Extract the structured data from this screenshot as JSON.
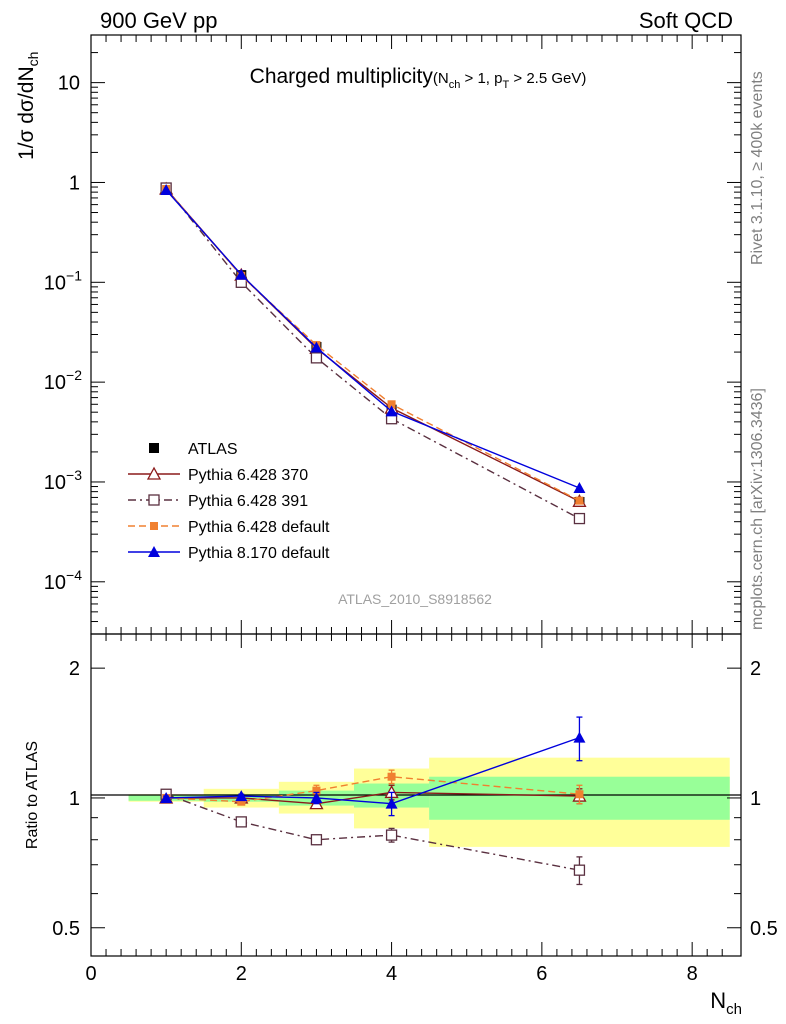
{
  "header": {
    "left": "900 GeV pp",
    "right": "Soft QCD"
  },
  "side_labels": {
    "rivet": "Rivet 3.1.10, ≥ 400k events",
    "mcplots": "mcplots.cern.ch [arXiv:1306.3436]"
  },
  "chart_data": [
    {
      "type": "line",
      "title": "Charged multiplicity",
      "title_suffix": {
        "open": "(N",
        "sub1": "ch",
        "mid": " > 1, p",
        "sub2": "T",
        "close": " > 2.5 GeV)"
      },
      "ylabel": {
        "main": "1/σ dσ/dN",
        "sub": "ch"
      },
      "yscale": "log",
      "ylim": [
        3e-05,
        30
      ],
      "xlim": [
        0,
        8.65
      ],
      "yticks": [
        {
          "value": 10,
          "label": "10"
        },
        {
          "value": 1,
          "label": "1"
        },
        {
          "value": 0.1,
          "base": "10",
          "exp": "−1"
        },
        {
          "value": 0.01,
          "base": "10",
          "exp": "−2"
        },
        {
          "value": 0.001,
          "base": "10",
          "exp": "−3"
        },
        {
          "value": 0.0001,
          "base": "10",
          "exp": "−4"
        }
      ],
      "watermark": "ATLAS_2010_S8918562",
      "legend_position": "bottom-left",
      "x": [
        1,
        2,
        3,
        4,
        6.5
      ],
      "series": [
        {
          "name": "ATLAS",
          "values": [
            0.86,
            0.118,
            0.0225,
            0.0053,
            0.00063
          ],
          "color": "#000000",
          "marker": "square-filled",
          "dash": "none"
        },
        {
          "name": "Pythia 6.428 370",
          "values": [
            0.86,
            0.118,
            0.0218,
            0.0055,
            0.00064
          ],
          "color": "#8b1a1a",
          "marker": "triangle-open",
          "dash": "solid"
        },
        {
          "name": "Pythia 6.428 391",
          "values": [
            0.88,
            0.1,
            0.0175,
            0.0043,
            0.00043
          ],
          "color": "#5a3040",
          "marker": "square-open",
          "dash": "dashdot"
        },
        {
          "name": "Pythia 6.428 default",
          "values": [
            0.86,
            0.116,
            0.0235,
            0.006,
            0.00065
          ],
          "color": "#f08030",
          "marker": "square-filled-small",
          "dash": "dashed"
        },
        {
          "name": "Pythia 8.170 default",
          "values": [
            0.84,
            0.119,
            0.0222,
            0.0051,
            0.00087
          ],
          "color": "#0000dd",
          "marker": "triangle-filled",
          "dash": "solid"
        }
      ]
    },
    {
      "type": "line",
      "ylabel": "Ratio to ATLAS",
      "xlabel": {
        "main": "N",
        "sub": "ch"
      },
      "yscale": "log",
      "ylim": [
        0.43,
        2.4
      ],
      "xlim": [
        0,
        8.65
      ],
      "yticks": [
        {
          "value": 2,
          "label": "2"
        },
        {
          "value": 1,
          "label": "1"
        },
        {
          "value": 0.5,
          "label": "0.5"
        }
      ],
      "xticks": [
        {
          "value": 0,
          "label": "0"
        },
        {
          "value": 2,
          "label": "2"
        },
        {
          "value": 4,
          "label": "4"
        },
        {
          "value": 6,
          "label": "6"
        },
        {
          "value": 8,
          "label": "8"
        }
      ],
      "uncertainty_bands": [
        {
          "x0": 0.5,
          "x1": 1.5,
          "inner": [
            0.985,
            1.015
          ],
          "outer": [
            0.98,
            1.02
          ]
        },
        {
          "x0": 1.5,
          "x1": 2.5,
          "inner": [
            0.98,
            1.02
          ],
          "outer": [
            0.95,
            1.05
          ]
        },
        {
          "x0": 2.5,
          "x1": 3.5,
          "inner": [
            0.96,
            1.04
          ],
          "outer": [
            0.92,
            1.09
          ]
        },
        {
          "x0": 3.5,
          "x1": 4.5,
          "inner": [
            0.95,
            1.08
          ],
          "outer": [
            0.85,
            1.17
          ]
        },
        {
          "x0": 4.5,
          "x1": 8.5,
          "inner": [
            0.89,
            1.12
          ],
          "outer": [
            0.77,
            1.24
          ]
        }
      ],
      "band_colors": {
        "inner": "#98ff98",
        "outer": "#ffff99"
      },
      "x": [
        1,
        2,
        3,
        4,
        6.5
      ],
      "series": [
        {
          "name": "Pythia 6.428 370",
          "values": [
            1.0,
            1.0,
            0.97,
            1.03,
            1.01
          ],
          "errors": [
            0.01,
            0.01,
            0.02,
            0.04,
            0.04
          ],
          "color": "#8b1a1a",
          "marker": "triangle-open",
          "dash": "solid"
        },
        {
          "name": "Pythia 6.428 391",
          "values": [
            1.02,
            0.88,
            0.8,
            0.82,
            0.68
          ],
          "errors": [
            0.01,
            0.01,
            0.02,
            0.03,
            0.05
          ],
          "color": "#5a3040",
          "marker": "square-open",
          "dash": "dashdot"
        },
        {
          "name": "Pythia 6.428 default",
          "values": [
            1.0,
            0.98,
            1.04,
            1.12,
            1.02
          ],
          "errors": [
            0.01,
            0.01,
            0.03,
            0.04,
            0.05
          ],
          "color": "#f08030",
          "marker": "square-filled-small",
          "dash": "dashed"
        },
        {
          "name": "Pythia 8.170 default",
          "values": [
            1.0,
            1.01,
            1.0,
            0.97,
            1.38
          ],
          "errors": [
            0.01,
            0.01,
            0.03,
            0.06,
            0.16
          ],
          "color": "#0000dd",
          "marker": "triangle-filled",
          "dash": "solid"
        }
      ]
    }
  ]
}
